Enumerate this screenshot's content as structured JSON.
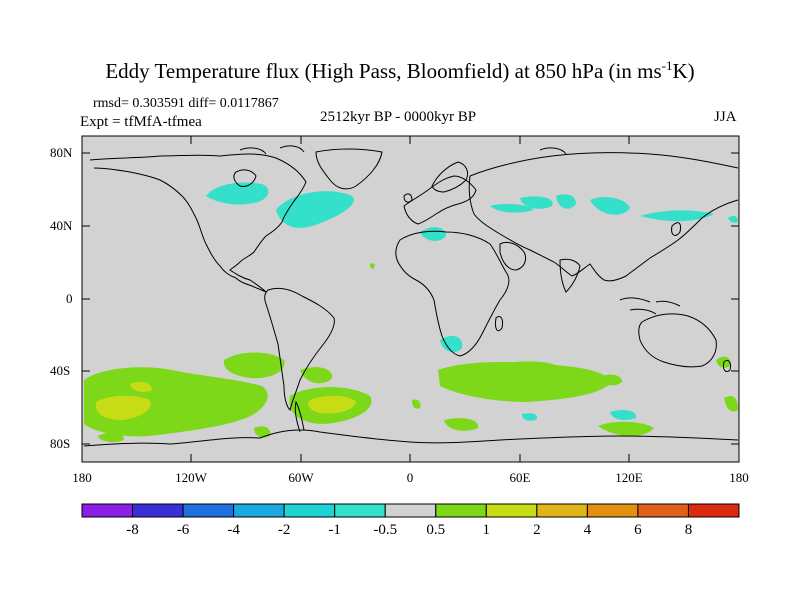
{
  "title_main": "Eddy Temperature flux (High Pass, Bloomfield) at 850 hPa (in ms",
  "title_sup": "-1",
  "title_end": "K)",
  "stats": "rmsd= 0.303591  diff= 0.0117867",
  "experiment": "Expt = tfMfA-tfmea",
  "period": "2512kyr BP - 0000kyr BP",
  "season": "JJA",
  "lat_labels": [
    "80N",
    "40N",
    "0",
    "40S",
    "80S"
  ],
  "lon_labels": [
    "180",
    "120W",
    "60W",
    "0",
    "60E",
    "120E",
    "180"
  ],
  "colorbar": {
    "labels": [
      "-8",
      "-6",
      "-4",
      "-2",
      "-1",
      "-0.5",
      "0.5",
      "1",
      "2",
      "4",
      "6",
      "8"
    ],
    "colors": [
      "#8a1de8",
      "#3a2fd6",
      "#1f6fe0",
      "#19a9e0",
      "#1ed3d3",
      "#34e0c9",
      "#d2d2d2",
      "#7ed81a",
      "#c8dc16",
      "#e0b616",
      "#e29010",
      "#e0601a",
      "#dc2a10"
    ]
  },
  "colors": {
    "ocean": "#d2d2d2",
    "positive": "#7ed81a",
    "positive_strong": "#c8dc16",
    "negative": "#34e0c9",
    "coast": "#000000"
  }
}
